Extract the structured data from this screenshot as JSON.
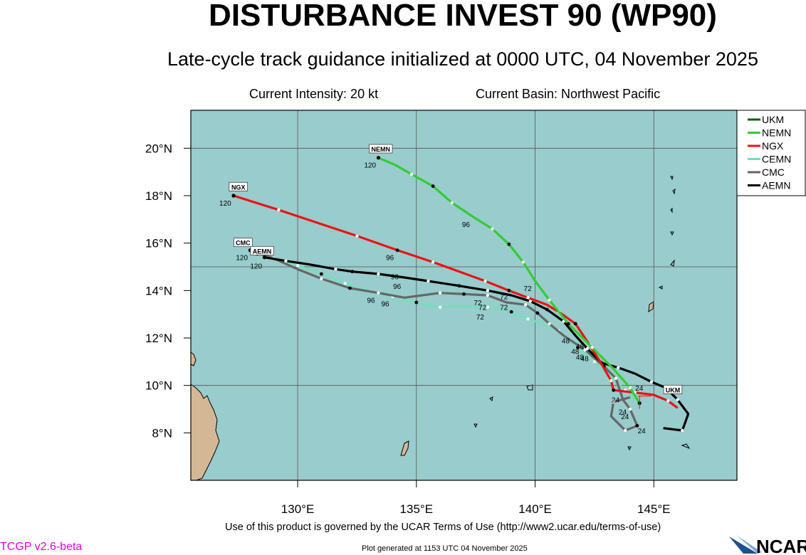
{
  "header": {
    "title": "DISTURBANCE INVEST 90 (WP90)",
    "subtitle": "Late-cycle track guidance initialized at 0000 UTC, 04 November 2025",
    "intensity": "Current Intensity: 20 kt",
    "basin": "Current Basin: Northwest Pacific"
  },
  "footer": {
    "terms": "Use of this product is governed by the UCAR Terms of Use (http://www2.ucar.edu/terms-of-use)",
    "version": "TCGP v2.6-beta",
    "generated": "Plot generated at 1153 UTC   04 November 2025",
    "logo_text": "NCAR"
  },
  "map": {
    "ocean_color": "#99cccc",
    "land_color": "#d4b896",
    "lon_range": [
      125.5,
      148.5
    ],
    "lat_range": [
      6,
      21.6
    ],
    "lon_ticks": [
      {
        "value": 130,
        "label": "130°E"
      },
      {
        "value": 135,
        "label": "135°E"
      },
      {
        "value": 140,
        "label": "140°E"
      },
      {
        "value": 145,
        "label": "145°E"
      }
    ],
    "lat_ticks": [
      {
        "value": 8,
        "label": "8°N"
      },
      {
        "value": 10,
        "label": "10°N"
      },
      {
        "value": 12,
        "label": "12°N"
      },
      {
        "value": 14,
        "label": "14°N"
      },
      {
        "value": 16,
        "label": "16°N"
      },
      {
        "value": 18,
        "label": "18°N"
      },
      {
        "value": 20,
        "label": "20°N"
      }
    ],
    "gridlines_lon": [
      130,
      135,
      140,
      145
    ],
    "gridlines_lat": [
      10,
      15,
      20
    ],
    "current_position": {
      "lon": 144.4,
      "lat": 9.25
    }
  },
  "legend": {
    "placement": "top-right",
    "entries": [
      {
        "name": "UKM",
        "color": "#006400"
      },
      {
        "name": "NEMN",
        "color": "#33cc33"
      },
      {
        "name": "NGX",
        "color": "#ee1111"
      },
      {
        "name": "CEMN",
        "color": "#77ddbb"
      },
      {
        "name": "CMC",
        "color": "#666666"
      },
      {
        "name": "AEMN",
        "color": "#000000"
      }
    ]
  },
  "tracks": [
    {
      "model": "NEMN",
      "color": "#33cc33",
      "tag": "NEMN",
      "points": [
        [
          144.4,
          9.25
        ],
        [
          144.0,
          9.9
        ],
        [
          143.3,
          10.7
        ],
        [
          142.4,
          11.6
        ],
        [
          141.4,
          12.6
        ],
        [
          140.6,
          13.6
        ],
        [
          140.0,
          14.4
        ],
        [
          139.5,
          15.2
        ],
        [
          138.9,
          15.95
        ],
        [
          138.2,
          16.6
        ],
        [
          137.4,
          17.1
        ],
        [
          136.5,
          17.7
        ],
        [
          135.7,
          18.4
        ],
        [
          134.8,
          18.9
        ],
        [
          134.1,
          19.3
        ],
        [
          133.4,
          19.6
        ]
      ],
      "labels": [
        {
          "lon": 137.4,
          "lat": 17.1,
          "text": "96",
          "dx": -16,
          "dy": 14
        },
        {
          "lon": 140.0,
          "lat": 14.4,
          "text": "72",
          "dx": -16,
          "dy": 14
        },
        {
          "lon": 133.4,
          "lat": 19.6,
          "text": "120",
          "dx": -20,
          "dy": 14
        }
      ],
      "tag_pos": {
        "lon": 133.5,
        "lat": 19.95
      }
    },
    {
      "model": "NGX",
      "color": "#ee1111",
      "tag": "NGX",
      "points": [
        [
          146.0,
          9.05
        ],
        [
          145.6,
          9.35
        ],
        [
          145.0,
          9.6
        ],
        [
          144.2,
          9.7
        ],
        [
          143.3,
          9.8
        ],
        [
          143.2,
          10.2
        ],
        [
          142.8,
          10.9
        ],
        [
          142.3,
          11.7
        ],
        [
          141.7,
          12.6
        ],
        [
          141.0,
          13.1
        ],
        [
          140.5,
          13.4
        ],
        [
          139.7,
          13.7
        ],
        [
          138.9,
          14.0
        ],
        [
          137.9,
          14.4
        ],
        [
          136.8,
          14.8
        ],
        [
          135.7,
          15.2
        ],
        [
          134.2,
          15.7
        ],
        [
          132.5,
          16.3
        ],
        [
          131.0,
          16.8
        ],
        [
          129.2,
          17.4
        ],
        [
          127.3,
          18.0
        ]
      ],
      "labels": [
        {
          "lon": 134.2,
          "lat": 15.7,
          "text": "96",
          "dx": -16,
          "dy": 14
        },
        {
          "lon": 127.3,
          "lat": 18.0,
          "text": "120",
          "dx": -20,
          "dy": 14
        }
      ],
      "tag_pos": {
        "lon": 127.5,
        "lat": 18.35
      }
    },
    {
      "model": "CEMN",
      "color": "#77ddbb",
      "tag": "",
      "points": [
        [
          144.4,
          9.25
        ],
        [
          143.8,
          9.8
        ],
        [
          143.0,
          10.5
        ],
        [
          142.5,
          11.0
        ],
        [
          141.8,
          11.6
        ],
        [
          141.0,
          12.3
        ],
        [
          140.3,
          12.6
        ],
        [
          139.7,
          12.8
        ],
        [
          139.0,
          13.1
        ],
        [
          138.0,
          13.3
        ],
        [
          137.0,
          13.35
        ],
        [
          136.0,
          13.3
        ],
        [
          135.0,
          13.5
        ],
        [
          134.0,
          13.75
        ],
        [
          133.0,
          13.95
        ],
        [
          132.0,
          14.3
        ],
        [
          131.0,
          14.7
        ],
        [
          130.0,
          15.05
        ],
        [
          129.1,
          15.3
        ],
        [
          128.3,
          15.55
        ]
      ],
      "labels": [
        {
          "lon": 138.0,
          "lat": 13.2,
          "text": "72",
          "dx": -16,
          "dy": 14
        },
        {
          "lon": 134.0,
          "lat": 13.75,
          "text": "96",
          "dx": -16,
          "dy": 14
        }
      ],
      "tag_pos": null
    },
    {
      "model": "CMC",
      "color": "#666666",
      "tag": "CMC",
      "points": [
        [
          144.0,
          9.5
        ],
        [
          143.3,
          9.3
        ],
        [
          143.2,
          8.7
        ],
        [
          143.8,
          8.1
        ],
        [
          144.3,
          8.3
        ],
        [
          144.0,
          9.0
        ],
        [
          143.7,
          9.4
        ],
        [
          143.4,
          10.3
        ],
        [
          142.9,
          10.8
        ],
        [
          142.1,
          11.5
        ],
        [
          141.2,
          12.1
        ],
        [
          140.6,
          12.6
        ],
        [
          140.1,
          13.05
        ],
        [
          139.6,
          13.4
        ],
        [
          138.8,
          13.5
        ],
        [
          138.0,
          13.8
        ],
        [
          137.0,
          13.85
        ],
        [
          136.0,
          13.9
        ],
        [
          134.5,
          13.7
        ],
        [
          133.4,
          13.9
        ],
        [
          132.2,
          14.1
        ],
        [
          131.0,
          14.5
        ],
        [
          130.0,
          14.9
        ],
        [
          129.0,
          15.35
        ],
        [
          128.0,
          15.7
        ]
      ],
      "labels": [
        {
          "lon": 137.9,
          "lat": 13.8,
          "text": "72",
          "dx": -16,
          "dy": 14
        },
        {
          "lon": 133.4,
          "lat": 13.9,
          "text": "96",
          "dx": -16,
          "dy": 14
        },
        {
          "lon": 128.0,
          "lat": 15.7,
          "text": "120",
          "dx": -20,
          "dy": 14
        }
      ],
      "tag_pos": {
        "lon": 127.7,
        "lat": 16.0
      }
    },
    {
      "model": "AEMN",
      "color": "#000000",
      "tag": "AEMN",
      "points": [
        [
          145.4,
          8.2
        ],
        [
          146.2,
          8.1
        ],
        [
          146.45,
          8.8
        ],
        [
          146.0,
          9.4
        ],
        [
          145.5,
          9.9
        ],
        [
          144.9,
          10.15
        ],
        [
          144.2,
          10.5
        ],
        [
          143.5,
          10.75
        ],
        [
          142.8,
          10.95
        ],
        [
          142.2,
          11.55
        ],
        [
          141.7,
          12.1
        ],
        [
          141.2,
          12.7
        ],
        [
          140.5,
          13.2
        ],
        [
          139.8,
          13.55
        ],
        [
          139.0,
          13.8
        ],
        [
          138.0,
          14.0
        ],
        [
          136.8,
          14.2
        ],
        [
          135.5,
          14.4
        ],
        [
          134.5,
          14.55
        ],
        [
          133.4,
          14.7
        ],
        [
          132.3,
          14.8
        ],
        [
          131.6,
          14.9
        ],
        [
          130.5,
          15.1
        ],
        [
          129.5,
          15.25
        ],
        [
          128.6,
          15.4
        ]
      ],
      "labels": [
        {
          "lon": 134.5,
          "lat": 14.55,
          "text": "96",
          "dx": -16,
          "dy": 16
        },
        {
          "lon": 128.6,
          "lat": 15.4,
          "text": "120",
          "dx": -20,
          "dy": 16
        }
      ],
      "tag_pos": {
        "lon": 128.5,
        "lat": 15.65
      }
    },
    {
      "model": "UKM",
      "color": "#006400",
      "tag": "UKM",
      "points": [
        [
          144.4,
          9.25
        ],
        [
          144.4,
          9.25
        ]
      ],
      "labels": [],
      "tag_pos": {
        "lon": 145.8,
        "lat": 9.8
      }
    }
  ],
  "extra_labels": [
    {
      "lon": 141.3,
      "lat": 11.9,
      "text": "48"
    },
    {
      "lon": 141.7,
      "lat": 11.45,
      "text": "48"
    },
    {
      "lon": 141.9,
      "lat": 11.2,
      "text": "48"
    },
    {
      "lon": 142.1,
      "lat": 11.15,
      "text": "48"
    },
    {
      "lon": 141.9,
      "lat": 11.65,
      "text": "48"
    },
    {
      "lon": 143.4,
      "lat": 9.4,
      "text": "24"
    },
    {
      "lon": 143.7,
      "lat": 8.9,
      "text": "24"
    },
    {
      "lon": 143.8,
      "lat": 8.7,
      "text": "24"
    },
    {
      "lon": 144.4,
      "lat": 9.9,
      "text": "24"
    },
    {
      "lon": 144.5,
      "lat": 8.1,
      "text": "24"
    },
    {
      "lon": 137.8,
      "lat": 13.3,
      "text": "72"
    },
    {
      "lon": 138.7,
      "lat": 13.75,
      "text": "72"
    },
    {
      "lon": 138.7,
      "lat": 13.3,
      "text": "72"
    },
    {
      "lon": 134.1,
      "lat": 14.6,
      "text": "96"
    }
  ]
}
